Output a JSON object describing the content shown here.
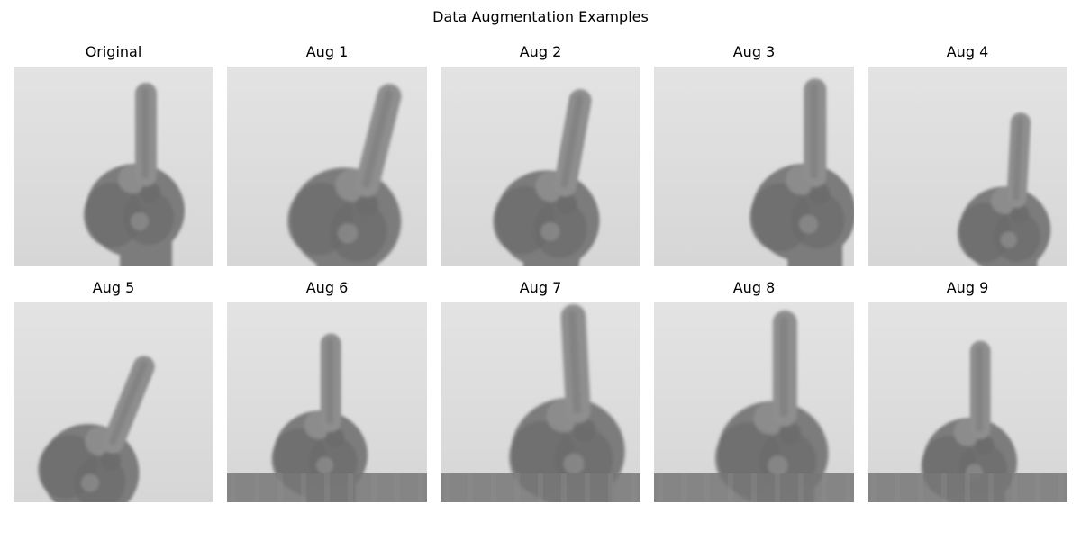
{
  "figure": {
    "title": "Data Augmentation Examples"
  },
  "panels": [
    {
      "label": "Original",
      "image": "hand-one-finger-image",
      "rotate": 0,
      "dx": 0,
      "dy": 0,
      "scale": 1.0,
      "fill_bottom": false
    },
    {
      "label": "Aug 1",
      "image": "hand-one-finger-image",
      "rotate": 14,
      "dx": 8,
      "dy": 0,
      "scale": 1.12,
      "fill_bottom": false
    },
    {
      "label": "Aug 2",
      "image": "hand-one-finger-image",
      "rotate": 10,
      "dx": -8,
      "dy": 4,
      "scale": 1.05,
      "fill_bottom": false
    },
    {
      "label": "Aug 3",
      "image": "hand-one-finger-image",
      "rotate": 0,
      "dx": 30,
      "dy": 0,
      "scale": 1.05,
      "fill_bottom": false
    },
    {
      "label": "Aug 4",
      "image": "hand-one-finger-image",
      "rotate": 3,
      "dx": 22,
      "dy": 24,
      "scale": 0.92,
      "fill_bottom": false
    },
    {
      "label": "Aug 5",
      "image": "hand-one-finger-image",
      "rotate": 22,
      "dx": -30,
      "dy": 22,
      "scale": 1.0,
      "fill_bottom": false
    },
    {
      "label": "Aug 6",
      "image": "hand-one-finger-image",
      "rotate": 0,
      "dx": -30,
      "dy": 12,
      "scale": 0.95,
      "fill_bottom": true
    },
    {
      "label": "Aug 7",
      "image": "hand-one-finger-image",
      "rotate": -3,
      "dx": 0,
      "dy": 0,
      "scale": 1.15,
      "fill_bottom": true
    },
    {
      "label": "Aug 8",
      "image": "hand-one-finger-image",
      "rotate": 0,
      "dx": -6,
      "dy": 2,
      "scale": 1.12,
      "fill_bottom": true
    },
    {
      "label": "Aug 9",
      "image": "hand-one-finger-image",
      "rotate": 0,
      "dx": -20,
      "dy": 20,
      "scale": 0.95,
      "fill_bottom": true
    }
  ],
  "colors": {
    "background_light": "#e3e3e3",
    "background_mid": "#d6d6d6",
    "hand_dark": "#6b6b6b",
    "hand_mid": "#7c7c7c",
    "hand_light": "#8e8e8e",
    "fill_dark": "#777777"
  }
}
